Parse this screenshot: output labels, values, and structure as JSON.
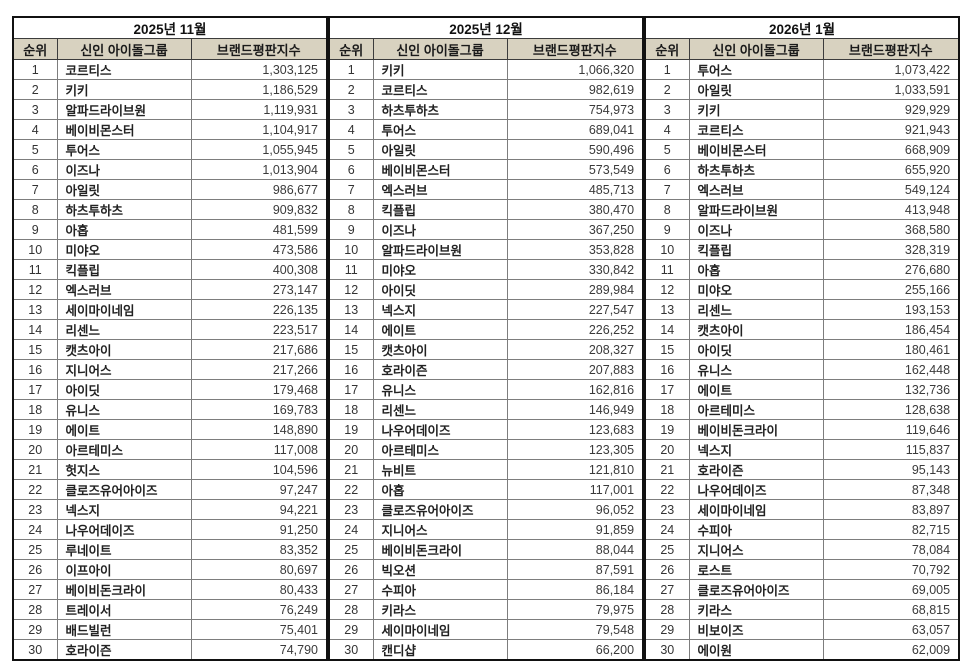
{
  "colors": {
    "header_bg": "#d8d2c0",
    "outer_border": "#111111",
    "inner_border": "#7d7d7d",
    "header_border": "#3c3c3c",
    "text": "#262626"
  },
  "chart_data": [
    {
      "type": "table",
      "title": "2025년 11월",
      "columns": {
        "rank": "순위",
        "group": "신인 아이돌그룹",
        "value": "브랜드평판지수"
      },
      "rows": [
        {
          "rank": "1",
          "group": "코르티스",
          "value": "1,303,125"
        },
        {
          "rank": "2",
          "group": "키키",
          "value": "1,186,529"
        },
        {
          "rank": "3",
          "group": "알파드라이브원",
          "value": "1,119,931"
        },
        {
          "rank": "4",
          "group": "베이비몬스터",
          "value": "1,104,917"
        },
        {
          "rank": "5",
          "group": "투어스",
          "value": "1,055,945"
        },
        {
          "rank": "6",
          "group": "이즈나",
          "value": "1,013,904"
        },
        {
          "rank": "7",
          "group": "아일릿",
          "value": "986,677"
        },
        {
          "rank": "8",
          "group": "하츠투하츠",
          "value": "909,832"
        },
        {
          "rank": "9",
          "group": "아홉",
          "value": "481,599"
        },
        {
          "rank": "10",
          "group": "미야오",
          "value": "473,586"
        },
        {
          "rank": "11",
          "group": "킥플립",
          "value": "400,308"
        },
        {
          "rank": "12",
          "group": "엑스러브",
          "value": "273,147"
        },
        {
          "rank": "13",
          "group": "세이마이네임",
          "value": "226,135"
        },
        {
          "rank": "14",
          "group": "리센느",
          "value": "223,517"
        },
        {
          "rank": "15",
          "group": "캣츠아이",
          "value": "217,686"
        },
        {
          "rank": "16",
          "group": "지니어스",
          "value": "217,266"
        },
        {
          "rank": "17",
          "group": "아이딧",
          "value": "179,468"
        },
        {
          "rank": "18",
          "group": "유니스",
          "value": "169,783"
        },
        {
          "rank": "19",
          "group": "에이트",
          "value": "148,890"
        },
        {
          "rank": "20",
          "group": "아르테미스",
          "value": "117,008"
        },
        {
          "rank": "21",
          "group": "헛지스",
          "value": "104,596"
        },
        {
          "rank": "22",
          "group": "클로즈유어아이즈",
          "value": "97,247"
        },
        {
          "rank": "23",
          "group": "넥스지",
          "value": "94,221"
        },
        {
          "rank": "24",
          "group": "나우어데이즈",
          "value": "91,250"
        },
        {
          "rank": "25",
          "group": "루네이트",
          "value": "83,352"
        },
        {
          "rank": "26",
          "group": "이프아이",
          "value": "80,697"
        },
        {
          "rank": "27",
          "group": "베이비돈크라이",
          "value": "80,433"
        },
        {
          "rank": "28",
          "group": "트레이서",
          "value": "76,249"
        },
        {
          "rank": "29",
          "group": "배드빌런",
          "value": "75,401"
        },
        {
          "rank": "30",
          "group": "호라이즌",
          "value": "74,790"
        }
      ]
    },
    {
      "type": "table",
      "title": "2025년 12월",
      "columns": {
        "rank": "순위",
        "group": "신인 아이돌그룹",
        "value": "브랜드평판지수"
      },
      "rows": [
        {
          "rank": "1",
          "group": "키키",
          "value": "1,066,320"
        },
        {
          "rank": "2",
          "group": "코르티스",
          "value": "982,619"
        },
        {
          "rank": "3",
          "group": "하츠투하츠",
          "value": "754,973"
        },
        {
          "rank": "4",
          "group": "투어스",
          "value": "689,041"
        },
        {
          "rank": "5",
          "group": "아일릿",
          "value": "590,496"
        },
        {
          "rank": "6",
          "group": "베이비몬스터",
          "value": "573,549"
        },
        {
          "rank": "7",
          "group": "엑스러브",
          "value": "485,713"
        },
        {
          "rank": "8",
          "group": "킥플립",
          "value": "380,470"
        },
        {
          "rank": "9",
          "group": "이즈나",
          "value": "367,250"
        },
        {
          "rank": "10",
          "group": "알파드라이브원",
          "value": "353,828"
        },
        {
          "rank": "11",
          "group": "미야오",
          "value": "330,842"
        },
        {
          "rank": "12",
          "group": "아이딧",
          "value": "289,984"
        },
        {
          "rank": "13",
          "group": "넥스지",
          "value": "227,547"
        },
        {
          "rank": "14",
          "group": "에이트",
          "value": "226,252"
        },
        {
          "rank": "15",
          "group": "캣츠아이",
          "value": "208,327"
        },
        {
          "rank": "16",
          "group": "호라이즌",
          "value": "207,883"
        },
        {
          "rank": "17",
          "group": "유니스",
          "value": "162,816"
        },
        {
          "rank": "18",
          "group": "리센느",
          "value": "146,949"
        },
        {
          "rank": "19",
          "group": "나우어데이즈",
          "value": "123,683"
        },
        {
          "rank": "20",
          "group": "아르테미스",
          "value": "123,305"
        },
        {
          "rank": "21",
          "group": "뉴비트",
          "value": "121,810"
        },
        {
          "rank": "22",
          "group": "아홉",
          "value": "117,001"
        },
        {
          "rank": "23",
          "group": "클로즈유어아이즈",
          "value": "96,052"
        },
        {
          "rank": "24",
          "group": "지니어스",
          "value": "91,859"
        },
        {
          "rank": "25",
          "group": "베이비돈크라이",
          "value": "88,044"
        },
        {
          "rank": "26",
          "group": "빅오션",
          "value": "87,591"
        },
        {
          "rank": "27",
          "group": "수피아",
          "value": "86,184"
        },
        {
          "rank": "28",
          "group": "키라스",
          "value": "79,975"
        },
        {
          "rank": "29",
          "group": "세이마이네임",
          "value": "79,548"
        },
        {
          "rank": "30",
          "group": "캔디샵",
          "value": "66,200"
        }
      ]
    },
    {
      "type": "table",
      "title": "2026년 1월",
      "columns": {
        "rank": "순위",
        "group": "신인 아이돌그룹",
        "value": "브랜드평판지수"
      },
      "rows": [
        {
          "rank": "1",
          "group": "투어스",
          "value": "1,073,422"
        },
        {
          "rank": "2",
          "group": "아일릿",
          "value": "1,033,591"
        },
        {
          "rank": "3",
          "group": "키키",
          "value": "929,929"
        },
        {
          "rank": "4",
          "group": "코르티스",
          "value": "921,943"
        },
        {
          "rank": "5",
          "group": "베이비몬스터",
          "value": "668,909"
        },
        {
          "rank": "6",
          "group": "하츠투하츠",
          "value": "655,920"
        },
        {
          "rank": "7",
          "group": "엑스러브",
          "value": "549,124"
        },
        {
          "rank": "8",
          "group": "알파드라이브원",
          "value": "413,948"
        },
        {
          "rank": "9",
          "group": "이즈나",
          "value": "368,580"
        },
        {
          "rank": "10",
          "group": "킥플립",
          "value": "328,319"
        },
        {
          "rank": "11",
          "group": "아홉",
          "value": "276,680"
        },
        {
          "rank": "12",
          "group": "미야오",
          "value": "255,166"
        },
        {
          "rank": "13",
          "group": "리센느",
          "value": "193,153"
        },
        {
          "rank": "14",
          "group": "캣츠아이",
          "value": "186,454"
        },
        {
          "rank": "15",
          "group": "아이딧",
          "value": "180,461"
        },
        {
          "rank": "16",
          "group": "유니스",
          "value": "162,448"
        },
        {
          "rank": "17",
          "group": "에이트",
          "value": "132,736"
        },
        {
          "rank": "18",
          "group": "아르테미스",
          "value": "128,638"
        },
        {
          "rank": "19",
          "group": "베이비돈크라이",
          "value": "119,646"
        },
        {
          "rank": "20",
          "group": "넥스지",
          "value": "115,837"
        },
        {
          "rank": "21",
          "group": "호라이즌",
          "value": "95,143"
        },
        {
          "rank": "22",
          "group": "나우어데이즈",
          "value": "87,348"
        },
        {
          "rank": "23",
          "group": "세이마이네임",
          "value": "83,897"
        },
        {
          "rank": "24",
          "group": "수피아",
          "value": "82,715"
        },
        {
          "rank": "25",
          "group": "지니어스",
          "value": "78,084"
        },
        {
          "rank": "26",
          "group": "로스트",
          "value": "70,792"
        },
        {
          "rank": "27",
          "group": "클로즈유어아이즈",
          "value": "69,005"
        },
        {
          "rank": "28",
          "group": "키라스",
          "value": "68,815"
        },
        {
          "rank": "29",
          "group": "비보이즈",
          "value": "63,057"
        },
        {
          "rank": "30",
          "group": "에이원",
          "value": "62,009"
        }
      ]
    }
  ]
}
